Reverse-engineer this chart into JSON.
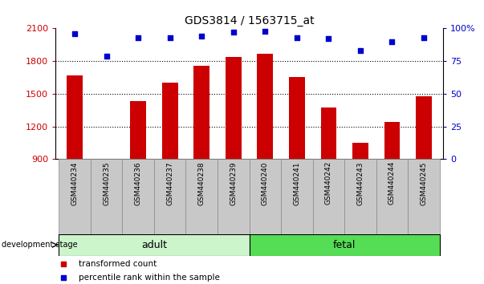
{
  "title": "GDS3814 / 1563715_at",
  "samples": [
    "GSM440234",
    "GSM440235",
    "GSM440236",
    "GSM440237",
    "GSM440238",
    "GSM440239",
    "GSM440240",
    "GSM440241",
    "GSM440242",
    "GSM440243",
    "GSM440244",
    "GSM440245"
  ],
  "transformed_count": [
    1665,
    883,
    1430,
    1600,
    1760,
    1840,
    1870,
    1650,
    1370,
    1050,
    1240,
    1480
  ],
  "percentile_rank": [
    96,
    79,
    93,
    93,
    94,
    97,
    98,
    93,
    92,
    83,
    90,
    93
  ],
  "ylim_left": [
    900,
    2100
  ],
  "ylim_right": [
    0,
    100
  ],
  "yticks_left": [
    900,
    1200,
    1500,
    1800,
    2100
  ],
  "yticks_right": [
    0,
    25,
    50,
    75,
    100
  ],
  "ytick_labels_right": [
    "0",
    "25",
    "50",
    "75",
    "100%"
  ],
  "groups": [
    {
      "label": "adult",
      "indices": [
        0,
        1,
        2,
        3,
        4,
        5
      ],
      "color": "#ccf5cc"
    },
    {
      "label": "fetal",
      "indices": [
        6,
        7,
        8,
        9,
        10,
        11
      ],
      "color": "#55dd55"
    }
  ],
  "bar_color": "#cc0000",
  "dot_color": "#0000cc",
  "development_stage_label": "development stage",
  "legend_items": [
    {
      "label": "transformed count",
      "color": "#cc0000"
    },
    {
      "label": "percentile rank within the sample",
      "color": "#0000cc"
    }
  ],
  "left_ytick_color": "#cc0000",
  "right_ytick_color": "#0000cc",
  "title_color": "#000000",
  "figsize": [
    6.03,
    3.54
  ],
  "dpi": 100
}
